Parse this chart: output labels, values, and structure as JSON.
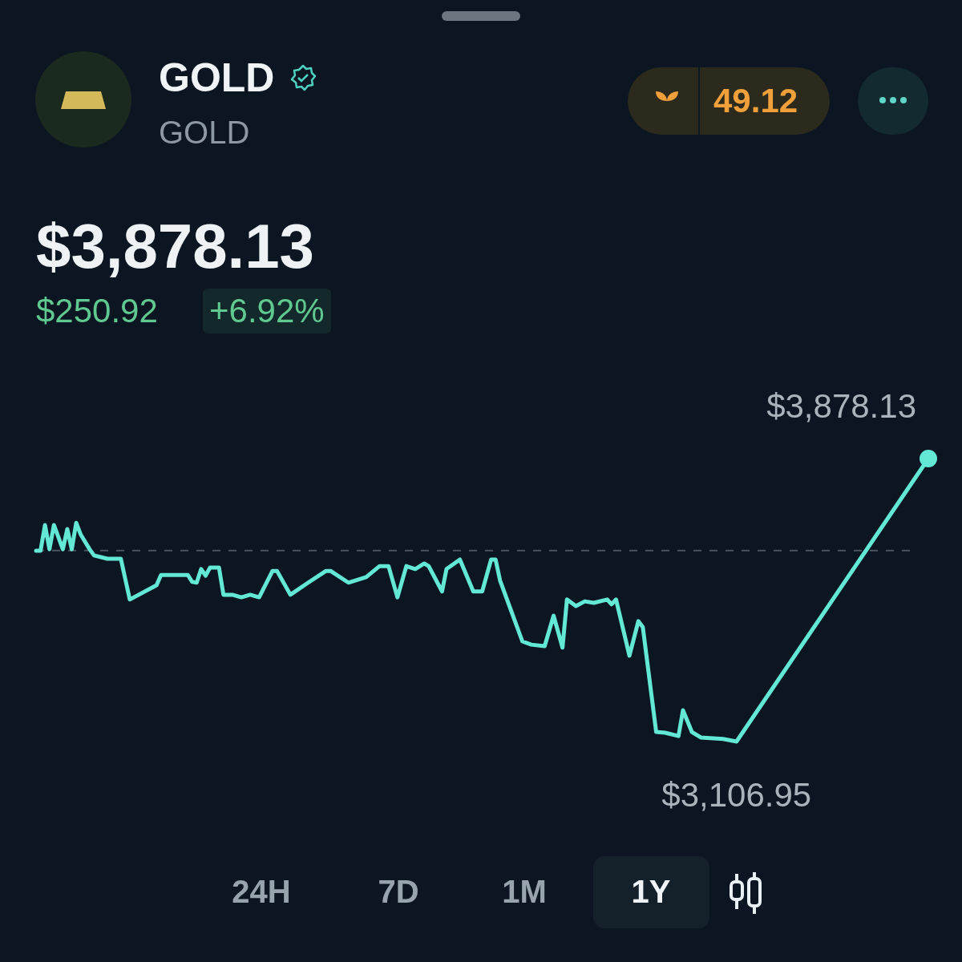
{
  "chart_data": {
    "type": "line",
    "title": "GOLD",
    "subtitle": "GOLD",
    "annotations": [
      "$3,878.13",
      "$250.92",
      "+6.92%",
      "49.12",
      "24H",
      "7D",
      "1M",
      "1Y"
    ],
    "categories": [
      null,
      null,
      null,
      null,
      null,
      null,
      null,
      null,
      null,
      null,
      null,
      null,
      null,
      null,
      null,
      null,
      null,
      null,
      null,
      null,
      null,
      null,
      null,
      null,
      null,
      null,
      null,
      null,
      null,
      null,
      null,
      null,
      null,
      null,
      null,
      null,
      null,
      null,
      null,
      null,
      null,
      null,
      null,
      null,
      null,
      null,
      null,
      null,
      null,
      null,
      null,
      null,
      null,
      null,
      null,
      null,
      null,
      null,
      null,
      null,
      null,
      null,
      null,
      null,
      null,
      null,
      null,
      null,
      null,
      null,
      null,
      null,
      null,
      null,
      null,
      null,
      null,
      null,
      null,
      null,
      null,
      null,
      null,
      null,
      null,
      null,
      null,
      null,
      null,
      null,
      null,
      null,
      null,
      null,
      null,
      null,
      null,
      null,
      null,
      null,
      null,
      null,
      null,
      null,
      null,
      null,
      null,
      null,
      null,
      null,
      null,
      null,
      null,
      null,
      null,
      null,
      null,
      null,
      null,
      null,
      null,
      null,
      null,
      null,
      null,
      null,
      null,
      null,
      null,
      null,
      null,
      null,
      null,
      null,
      null,
      null,
      null,
      null,
      null,
      null,
      null,
      null,
      null,
      null,
      null,
      null,
      null,
      null,
      null,
      null,
      null,
      null,
      null,
      null,
      null,
      null,
      null,
      null,
      null,
      null,
      null,
      null,
      null,
      null,
      null,
      null,
      null,
      null,
      null,
      null,
      null,
      null,
      null,
      null,
      null,
      null,
      null,
      null,
      null,
      null,
      null,
      null,
      null,
      null,
      null,
      null,
      null,
      null,
      null,
      null,
      null,
      null,
      null,
      null,
      null,
      null,
      null,
      null,
      null,
      null,
      null
    ],
    "series": [
      {
        "color": "#62e8d4",
        "values": [
          3627,
          3627,
          3697,
          3631,
          3697,
          null,
          3631,
          3686,
          3631,
          3703,
          3671,
          null,
          3631,
          3614,
          null,
          null,
          3605,
          null,
          null,
          3605,
          null,
          3494,
          null,
          null,
          null,
          null,
          null,
          3533,
          3561,
          null,
          null,
          null,
          null,
          null,
          3561,
          3542,
          3540,
          3577,
          3559,
          3581,
          null,
          3581,
          3507,
          null,
          3507,
          null,
          3500,
          null,
          3507,
          null,
          3500,
          null,
          null,
          3572,
          3572,
          null,
          null,
          3507,
          null,
          null,
          null,
          3540,
          null,
          null,
          null,
          3572,
          3572,
          null,
          null,
          null,
          3540,
          null,
          null,
          null,
          3555,
          null,
          null,
          3585,
          null,
          3585,
          null,
          3500,
          null,
          3585,
          null,
          3577,
          null,
          3592,
          3585,
          null,
          null,
          3516,
          3577,
          null,
          null,
          3603,
          null,
          null,
          3516,
          null,
          3516,
          null,
          3603,
          3603,
          3546,
          null,
          null,
          null,
          null,
          3380,
          null,
          3371,
          null,
          null,
          3367,
          null,
          3450,
          null,
          3363,
          3494,
          null,
          3476,
          null,
          3489,
          null,
          3485,
          null,
          null,
          3494,
          3481,
          3494,
          null,
          null,
          3341,
          null,
          3435,
          3419,
          null,
          null,
          3133,
          null,
          3131,
          null,
          null,
          3122,
          3192,
          null,
          3133,
          null,
          3118,
          null,
          null,
          null,
          null,
          3114,
          null,
          null,
          3106.95,
          null,
          null,
          null,
          null,
          null,
          null,
          null,
          null,
          null,
          null,
          null,
          null,
          null,
          null,
          null,
          null,
          null,
          null,
          null,
          null,
          null,
          null,
          null,
          null,
          null,
          null,
          null,
          null,
          null,
          null,
          null,
          null,
          null,
          null,
          null,
          null,
          null,
          null,
          null,
          null,
          null,
          null,
          3878.13
        ],
        "value_labels": [
          null,
          null,
          null,
          null,
          null,
          null,
          null,
          null,
          null,
          null,
          null,
          null,
          null,
          null,
          null,
          null,
          null,
          null,
          null,
          null,
          null,
          null,
          null,
          null,
          null,
          null,
          null,
          null,
          null,
          null,
          null,
          null,
          null,
          null,
          null,
          null,
          null,
          null,
          null,
          null,
          null,
          null,
          null,
          null,
          null,
          null,
          null,
          null,
          null,
          null,
          null,
          null,
          null,
          null,
          null,
          null,
          null,
          null,
          null,
          null,
          null,
          null,
          null,
          null,
          null,
          null,
          null,
          null,
          null,
          null,
          null,
          null,
          null,
          null,
          null,
          null,
          null,
          null,
          null,
          null,
          null,
          null,
          null,
          null,
          null,
          null,
          null,
          null,
          null,
          null,
          null,
          null,
          null,
          null,
          null,
          null,
          null,
          null,
          null,
          null,
          null,
          null,
          null,
          null,
          null,
          null,
          null,
          null,
          null,
          null,
          null,
          null,
          null,
          null,
          null,
          null,
          null,
          null,
          null,
          null,
          null,
          null,
          null,
          null,
          null,
          null,
          null,
          null,
          null,
          null,
          null,
          null,
          null,
          null,
          null,
          null,
          null,
          null,
          null,
          null,
          null,
          null,
          null,
          null,
          null,
          null,
          null,
          null,
          null,
          null,
          null,
          null,
          null,
          null,
          null,
          null,
          null,
          "$3,106.95",
          null,
          null,
          null,
          null,
          null,
          null,
          null,
          null,
          null,
          null,
          null,
          null,
          null,
          null,
          null,
          null,
          null,
          null,
          null,
          null,
          null,
          null,
          null,
          null,
          null,
          null,
          null,
          null,
          null,
          null,
          null,
          null,
          null,
          null,
          null,
          null,
          null,
          null,
          null,
          null,
          null,
          null,
          "$3,878.13"
        ]
      }
    ],
    "tick_labels": false,
    "ref_lines": [
      {
        "axis": "y",
        "value": 3627.21,
        "color": "#4a5560",
        "line_style": "dashed"
      }
    ]
  }
}
